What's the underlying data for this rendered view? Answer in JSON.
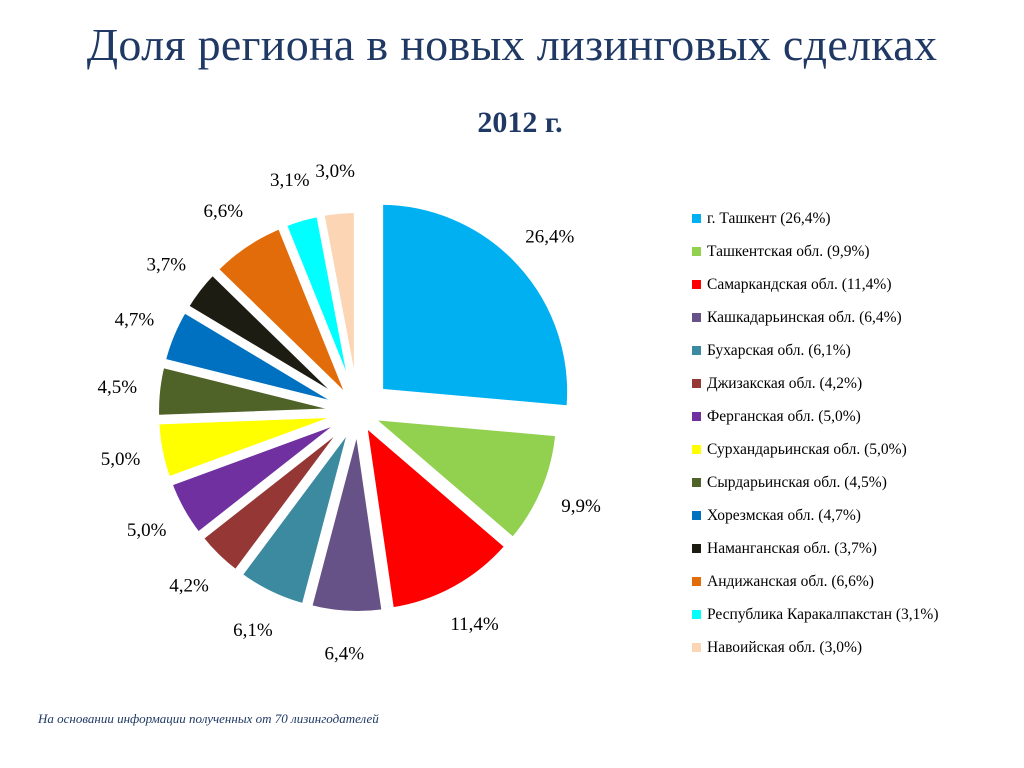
{
  "title": "Доля региона в новых лизинговых сделках",
  "subtitle": "2012 г.",
  "footnote": "На основании информации полученных от 70 лизингодателей",
  "chart_data": {
    "type": "pie",
    "title": "Доля региона в новых лизинговых сделках",
    "subtitle": "2012 г.",
    "legend_position": "right",
    "slices": [
      {
        "label": "г. Ташкент",
        "legend": "г. Ташкент (26,4%)",
        "value": 26.4,
        "data_label": "26,4%",
        "color": "#00b0f0"
      },
      {
        "label": "Ташкентская обл.",
        "legend": "Ташкентская обл. (9,9%)",
        "value": 9.9,
        "data_label": "9,9%",
        "color": "#92d050"
      },
      {
        "label": "Самаркандская обл.",
        "legend": "Самаркандская обл. (11,4%)",
        "value": 11.4,
        "data_label": "11,4%",
        "color": "#ff0000"
      },
      {
        "label": "Кашкадарьинская обл.",
        "legend": "Кашкадарьинская обл. (6,4%)",
        "value": 6.4,
        "data_label": "6,4%",
        "color": "#675287"
      },
      {
        "label": "Бухарская обл.",
        "legend": "Бухарская обл. (6,1%)",
        "value": 6.1,
        "data_label": "6,1%",
        "color": "#3b8aa0"
      },
      {
        "label": "Джизакская обл.",
        "legend": "Джизакская обл. (4,2%)",
        "value": 4.2,
        "data_label": "4,2%",
        "color": "#953735"
      },
      {
        "label": "Ферганская обл.",
        "legend": "Ферганская обл. (5,0%)",
        "value": 5.0,
        "data_label": "5,0%",
        "color": "#7030a0"
      },
      {
        "label": "Сурхандарьинская обл.",
        "legend": "Сурхандарьинская обл. (5,0%)",
        "value": 5.0,
        "data_label": "5,0%",
        "color": "#ffff00"
      },
      {
        "label": "Сырдарьинская обл.",
        "legend": "Сырдарьинская обл. (4,5%)",
        "value": 4.5,
        "data_label": "4,5%",
        "color": "#4f6228"
      },
      {
        "label": "Хорезмская обл.",
        "legend": "Хорезмская обл. (4,7%)",
        "value": 4.7,
        "data_label": "4,7%",
        "color": "#0070c0"
      },
      {
        "label": "Наманганская обл.",
        "legend": "Наманганская обл. (3,7%)",
        "value": 3.7,
        "data_label": "3,7%",
        "color": "#1c1c12"
      },
      {
        "label": "Андижанская обл.",
        "legend": "Андижанская обл. (6,6%)",
        "value": 6.6,
        "data_label": "6,6%",
        "color": "#e36c0a"
      },
      {
        "label": "Республика Каракалпакстан",
        "legend": "Республика Каракалпакстан (3,1%)",
        "value": 3.1,
        "data_label": "3,1%",
        "color": "#00ffff"
      },
      {
        "label": "Навоийская обл.",
        "legend": "Навоийская обл. (3,0%)",
        "value": 3.0,
        "data_label": "3,0%",
        "color": "#fcd5b5"
      }
    ]
  }
}
